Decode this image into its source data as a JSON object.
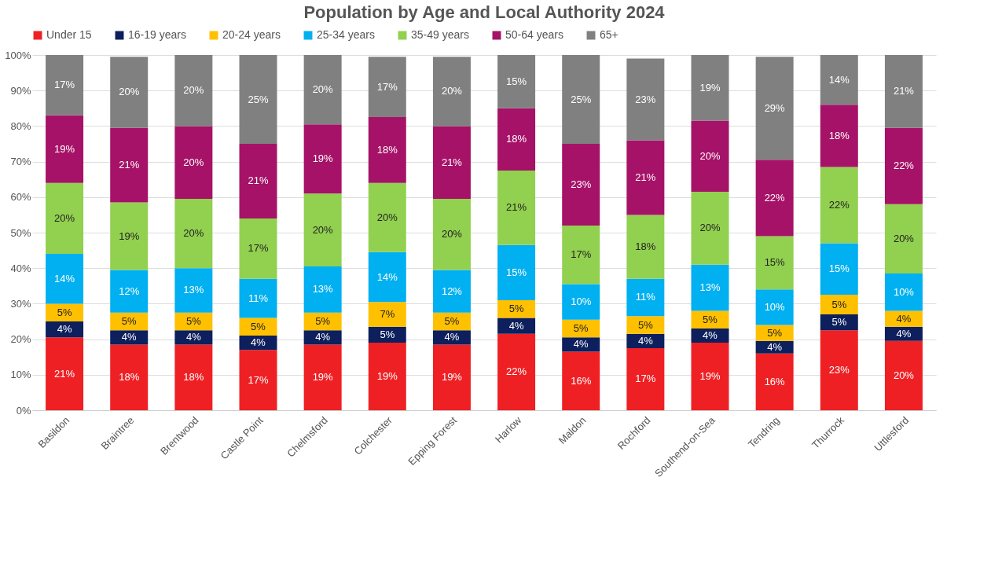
{
  "chart_data": {
    "type": "bar",
    "stacked": true,
    "title": "Population by Age and Local Authority 2024",
    "categories": [
      "Basildon",
      "Braintree",
      "Brentwood",
      "Castle Point",
      "Chelmsford",
      "Colchester",
      "Epping Forest",
      "Harlow",
      "Maldon",
      "Rochford",
      "Southend-on-Sea",
      "Tendring",
      "Thurrock",
      "Uttlesford"
    ],
    "series": [
      {
        "name": "Under 15",
        "color": "#ee2024",
        "values": [
          20.5,
          18.5,
          18.5,
          17,
          18.5,
          19,
          18.5,
          21.5,
          16.5,
          17.5,
          19,
          16,
          22.5,
          19.5
        ],
        "value_labels": [
          "21%",
          "18%",
          "18%",
          "17%",
          "19%",
          "19%",
          "19%",
          "22%",
          "16%",
          "17%",
          "19%",
          "16%",
          "23%",
          "20%"
        ]
      },
      {
        "name": "16-19 years",
        "color": "#0d1f5c",
        "values": [
          4.5,
          4,
          4,
          4,
          4,
          4.5,
          4,
          4.5,
          4,
          4,
          4,
          3.5,
          4.5,
          4
        ],
        "value_labels": [
          "4%",
          "4%",
          "4%",
          "4%",
          "4%",
          "5%",
          "4%",
          "4%",
          "4%",
          "4%",
          "4%",
          "4%",
          "5%",
          "4%"
        ]
      },
      {
        "name": "20-24 years",
        "color": "#ffc000",
        "values": [
          5,
          5,
          5,
          5,
          5,
          7,
          5,
          5,
          5,
          5,
          5,
          4.5,
          5.5,
          4.5
        ],
        "value_labels": [
          "5%",
          "5%",
          "5%",
          "5%",
          "5%",
          "7%",
          "5%",
          "5%",
          "5%",
          "5%",
          "5%",
          "5%",
          "5%",
          "4%"
        ]
      },
      {
        "name": "25-34 years",
        "color": "#00b0f0",
        "values": [
          14,
          12,
          12.5,
          11,
          13,
          14,
          12,
          15.5,
          10,
          10.5,
          13,
          10,
          14.5,
          10.5
        ],
        "value_labels": [
          "14%",
          "12%",
          "13%",
          "11%",
          "13%",
          "14%",
          "12%",
          "15%",
          "10%",
          "11%",
          "13%",
          "10%",
          "15%",
          "10%"
        ]
      },
      {
        "name": "35-49 years",
        "color": "#92d050",
        "values": [
          20,
          19,
          19.5,
          17,
          20.5,
          19.5,
          20,
          21,
          16.5,
          18,
          20.5,
          15,
          21.5,
          19.5
        ],
        "value_labels": [
          "20%",
          "19%",
          "20%",
          "17%",
          "20%",
          "20%",
          "20%",
          "21%",
          "17%",
          "18%",
          "20%",
          "15%",
          "22%",
          "20%"
        ]
      },
      {
        "name": "50-64 years",
        "color": "#a51267",
        "values": [
          19,
          21,
          20.5,
          21,
          19.5,
          18.5,
          20.5,
          17.5,
          23,
          21,
          20,
          21.5,
          17.5,
          21.5
        ],
        "value_labels": [
          "19%",
          "21%",
          "20%",
          "21%",
          "19%",
          "18%",
          "21%",
          "18%",
          "23%",
          "21%",
          "20%",
          "22%",
          "18%",
          "22%"
        ]
      },
      {
        "name": "65+",
        "color": "#808080",
        "values": [
          17,
          20,
          20,
          25,
          19.5,
          17,
          19.5,
          15,
          25,
          23,
          18.5,
          29,
          14,
          20.5
        ],
        "value_labels": [
          "17%",
          "20%",
          "20%",
          "25%",
          "20%",
          "17%",
          "20%",
          "15%",
          "25%",
          "23%",
          "19%",
          "29%",
          "14%",
          "21%"
        ]
      }
    ],
    "ylim": [
      0,
      100
    ],
    "yticks": [
      {
        "value": 0,
        "label": "0%"
      },
      {
        "value": 10,
        "label": "10%"
      },
      {
        "value": 20,
        "label": "20%"
      },
      {
        "value": 30,
        "label": "30%"
      },
      {
        "value": 40,
        "label": "40%"
      },
      {
        "value": 50,
        "label": "50%"
      },
      {
        "value": 60,
        "label": "60%"
      },
      {
        "value": 70,
        "label": "70%"
      },
      {
        "value": 80,
        "label": "80%"
      },
      {
        "value": 90,
        "label": "90%"
      },
      {
        "value": 100,
        "label": "100%"
      }
    ],
    "grid": "y",
    "legend": "top"
  }
}
